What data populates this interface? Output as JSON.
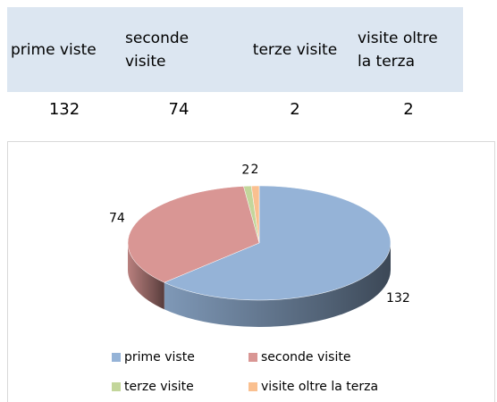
{
  "table": {
    "headers": [
      "prime viste",
      "seconde visite",
      "terze visite",
      "visite oltre la terza"
    ],
    "rows": [
      [
        132,
        74,
        2,
        2
      ]
    ]
  },
  "chart_data": {
    "type": "pie",
    "categories": [
      "prime viste",
      "seconde visite",
      "terze visite",
      "visite oltre la terza"
    ],
    "values": [
      132,
      74,
      2,
      2
    ],
    "colors": [
      "#95b3d7",
      "#d99694",
      "#c3d69b",
      "#fac090"
    ],
    "legend": "bottom"
  }
}
